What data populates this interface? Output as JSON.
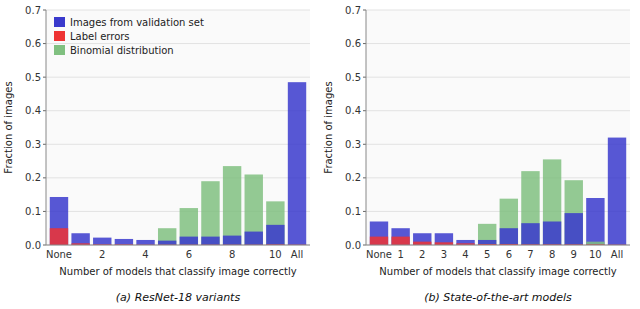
{
  "chart_data": [
    {
      "type": "bar",
      "title": "(a) ResNet-18 variants",
      "x_label": "Number of models that classify image correctly",
      "y_label": "Fraction of images",
      "categories": [
        "None",
        null,
        "2",
        null,
        "4",
        null,
        "6",
        null,
        "8",
        null,
        "10",
        "All"
      ],
      "series": [
        {
          "name": "Images from validation set",
          "color": "#3939cc",
          "values": [
            0.143,
            0.035,
            0.022,
            0.018,
            0.015,
            0.013,
            0.025,
            0.025,
            0.028,
            0.04,
            0.06,
            0.485
          ]
        },
        {
          "name": "Label errors",
          "color": "#ee3333",
          "values": [
            0.05,
            0.005,
            0.002,
            0.002,
            0.001,
            0.001,
            0.001,
            0.001,
            0.001,
            0.001,
            0.002,
            0.001
          ]
        },
        {
          "name": "Binomial distribution",
          "color": "#80c080",
          "values": [
            0.0,
            0.0,
            0.0,
            0.0,
            0.0,
            0.05,
            0.11,
            0.19,
            0.235,
            0.21,
            0.13,
            0.0
          ]
        }
      ],
      "ylim": [
        0,
        0.7
      ],
      "yticks": [
        {
          "value": 0,
          "label": "0.0"
        },
        0.1,
        0.2,
        0.3,
        0.4,
        0.5,
        0.6,
        0.7
      ],
      "grid": true,
      "stacked": false,
      "legend": "upper left"
    },
    {
      "type": "bar",
      "title": "(b) State-of-the-art models",
      "x_label": "Number of models that classify image correctly",
      "y_label": "Fraction of images",
      "categories": [
        "None",
        "1",
        "2",
        "3",
        "4",
        "5",
        "6",
        "7",
        "8",
        "9",
        "10",
        "All"
      ],
      "series": [
        {
          "color": "#3939cc",
          "values": [
            0.07,
            0.05,
            0.035,
            0.035,
            0.015,
            0.015,
            0.05,
            0.065,
            0.07,
            0.095,
            0.14,
            0.32
          ]
        },
        {
          "color": "#ee3333",
          "values": [
            0.025,
            0.025,
            0.01,
            0.008,
            0.005,
            0.003,
            0.003,
            0.002,
            0.002,
            0.002,
            0.002,
            0.001
          ]
        },
        {
          "color": "#80c080",
          "values": [
            0.0,
            0.0,
            0.0,
            0.0,
            0.0,
            0.063,
            0.138,
            0.22,
            0.255,
            0.193,
            0.01,
            0.0
          ]
        }
      ],
      "ylim": [
        0,
        0.7
      ],
      "yticks": [
        {
          "value": 0,
          "label": "0.0"
        },
        0.1,
        0.2,
        0.3,
        0.4,
        0.5,
        0.6,
        0.7
      ],
      "grid": true,
      "stacked": false
    }
  ]
}
